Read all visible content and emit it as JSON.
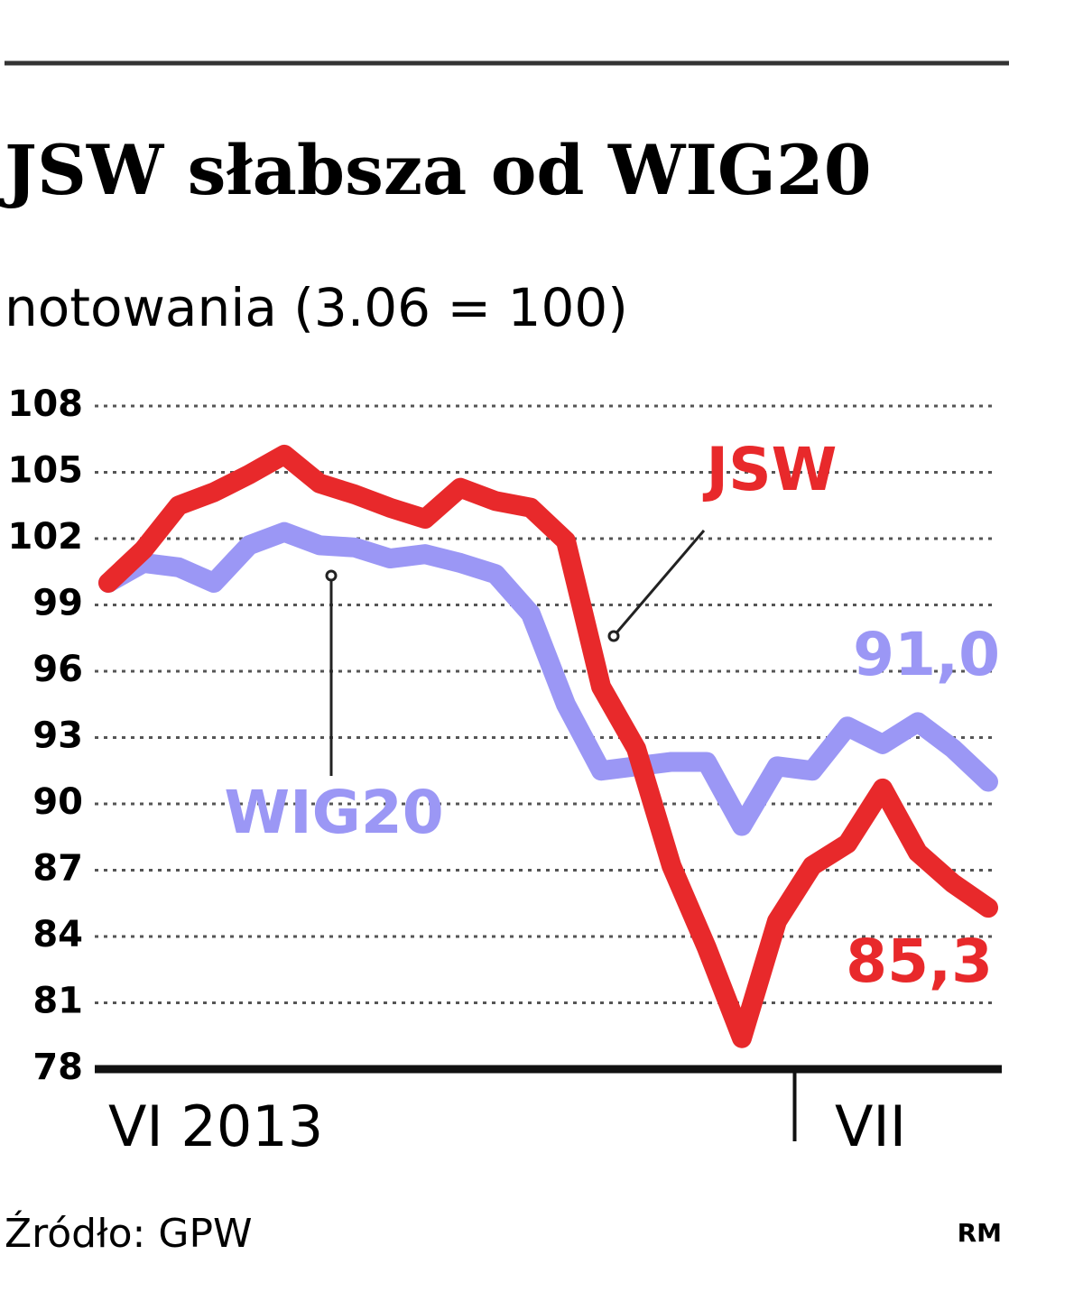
{
  "chart_data": {
    "type": "line",
    "title": "JSW słabsza od WIG20",
    "subtitle": "notowania (3.06 = 100)",
    "source": "Źródło: GPW",
    "credit": "RM",
    "categories": [
      "VI 2013",
      null,
      null,
      null,
      null,
      null,
      null,
      null,
      null,
      null,
      null,
      null,
      null,
      null,
      null,
      null,
      null,
      null,
      null,
      null,
      "VII",
      null,
      null,
      null,
      null,
      null
    ],
    "series": [
      {
        "name": "JSW",
        "color": "#e8292b",
        "end_label": "85,3",
        "values": [
          100.0,
          101.5,
          103.5,
          104.1,
          104.9,
          105.8,
          104.5,
          104.0,
          103.4,
          102.9,
          104.3,
          103.7,
          103.4,
          101.9,
          95.3,
          92.5,
          87.2,
          83.5,
          79.4,
          84.7,
          87.2,
          88.2,
          90.7,
          87.8,
          86.4,
          85.3
        ]
      },
      {
        "name": "WIG20",
        "color": "#9b97f5",
        "end_label": "91,0",
        "values": [
          100.0,
          100.9,
          100.7,
          100.0,
          101.7,
          102.3,
          101.7,
          101.6,
          101.1,
          101.3,
          100.9,
          100.4,
          98.6,
          94.5,
          91.5,
          91.7,
          91.9,
          91.9,
          89.0,
          91.7,
          91.5,
          93.5,
          92.7,
          93.7,
          92.5,
          91.0
        ]
      }
    ],
    "ylim": [
      78,
      108
    ],
    "yticks": [
      78,
      81,
      84,
      87,
      90,
      93,
      96,
      99,
      102,
      105,
      108
    ],
    "grid": true
  }
}
